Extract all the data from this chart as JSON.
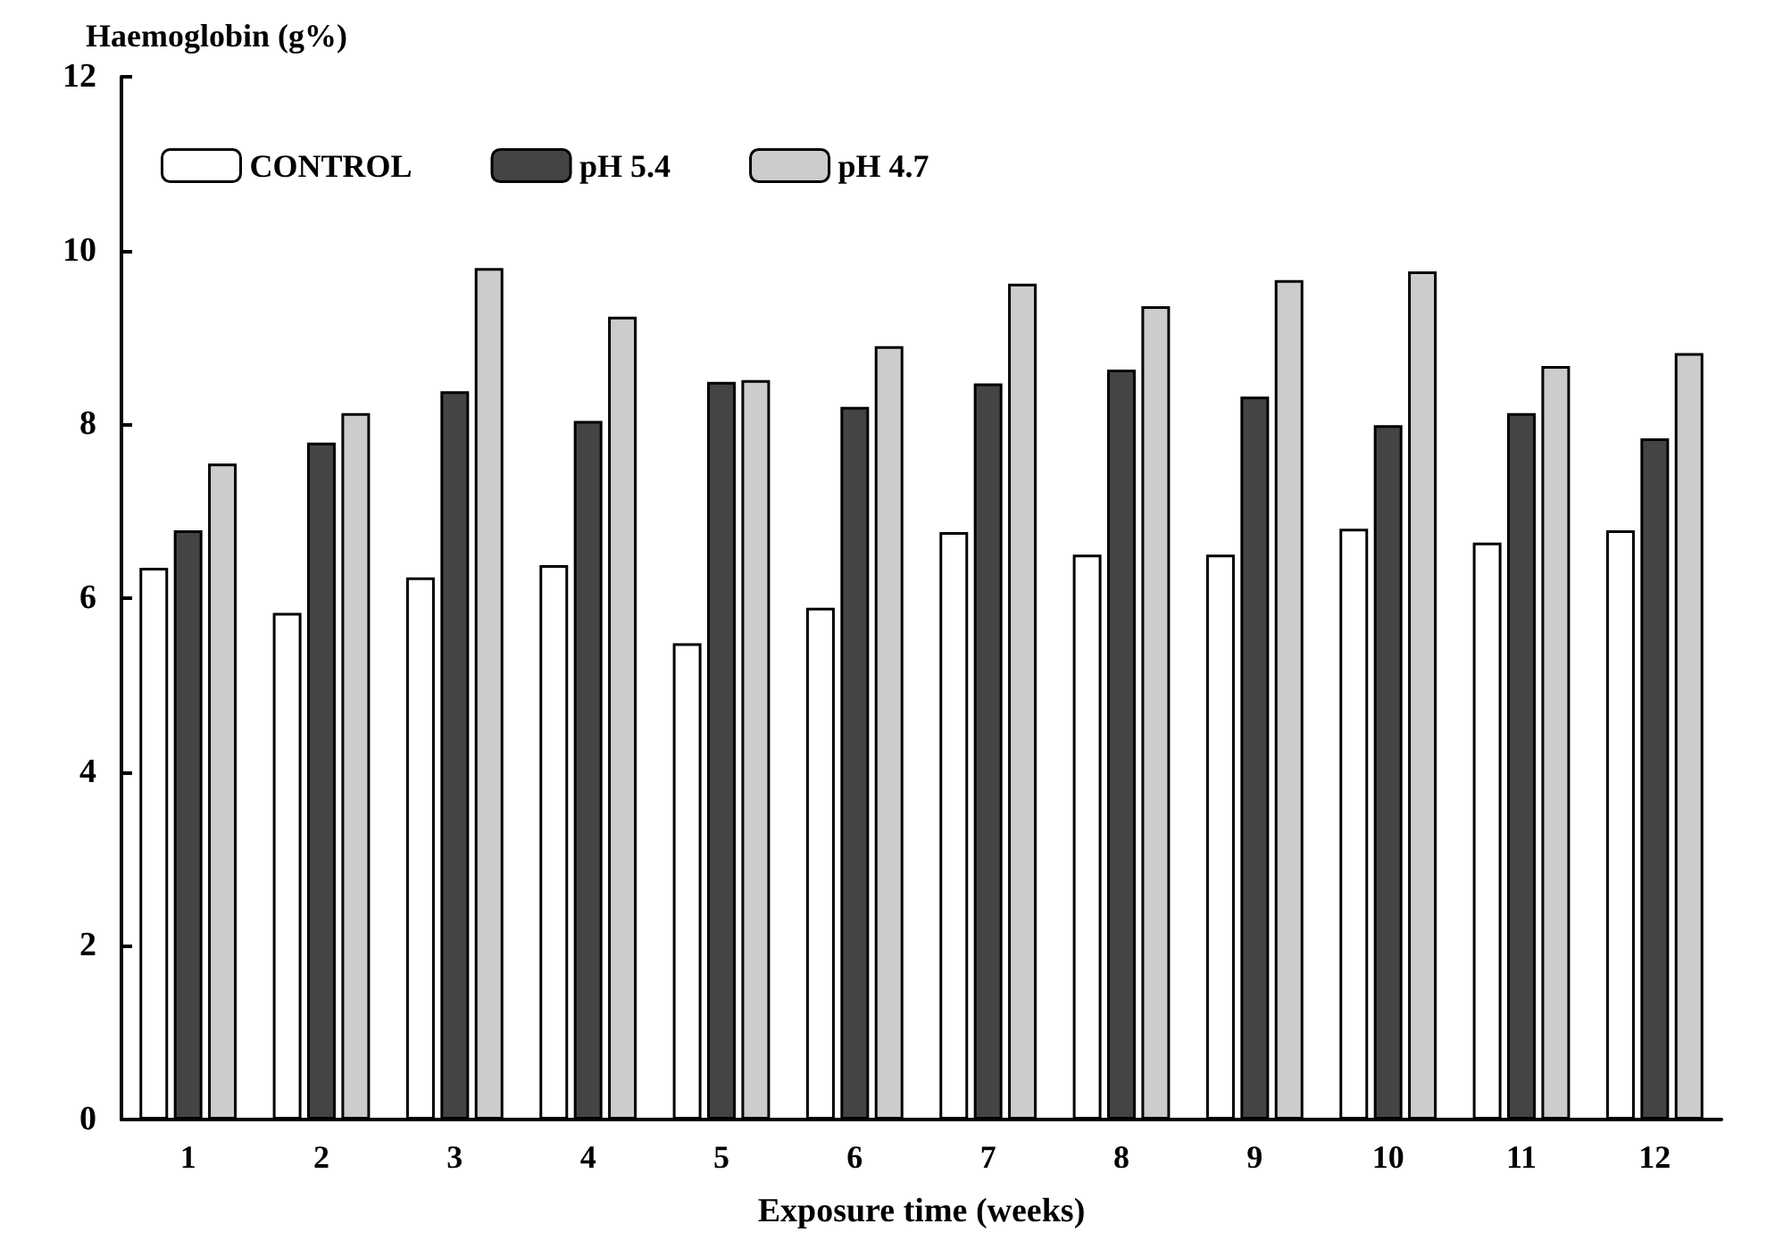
{
  "chart_data": {
    "type": "bar",
    "xlabel": "Exposure time (weeks)",
    "ylabel": "Haemoglobin (g%)",
    "categories": [
      "1",
      "2",
      "3",
      "4",
      "5",
      "6",
      "7",
      "8",
      "9",
      "10",
      "11",
      "12"
    ],
    "series": [
      {
        "name": "CONTROL",
        "color": "#ffffff",
        "values": [
          6.35,
          5.83,
          6.24,
          6.38,
          5.48,
          5.89,
          6.76,
          6.5,
          6.5,
          6.8,
          6.64,
          6.78
        ]
      },
      {
        "name": "pH 5.4",
        "color": "#444444",
        "values": [
          6.78,
          7.79,
          8.38,
          8.04,
          8.49,
          8.2,
          8.47,
          8.63,
          8.32,
          7.99,
          8.13,
          7.84
        ]
      },
      {
        "name": "pH 4.7",
        "color": "#cccccc",
        "values": [
          7.55,
          8.13,
          9.8,
          9.24,
          8.51,
          8.9,
          9.62,
          9.36,
          9.66,
          9.76,
          8.67,
          8.82
        ]
      }
    ],
    "ylim": [
      0,
      12
    ],
    "yticks": [
      0,
      2,
      4,
      6,
      8,
      10,
      12
    ],
    "grid": false,
    "legend": "top left"
  }
}
